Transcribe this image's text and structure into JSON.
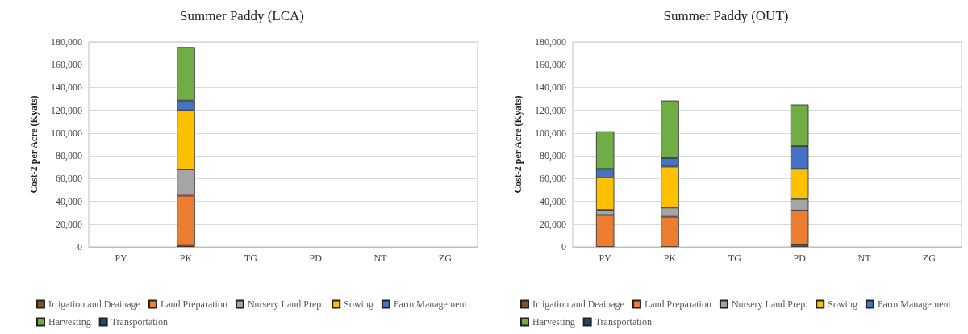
{
  "chart_data": [
    {
      "type": "bar",
      "title": "Summer Paddy (LCA)",
      "ylabel": "Cost-2 per Acre (Kyats)",
      "categories": [
        "PY",
        "PK",
        "TG",
        "PD",
        "NT",
        "ZG"
      ],
      "stacked": true,
      "ylim": [
        0,
        180000
      ],
      "yticks": [
        0,
        {
          "value": 20000,
          "label": "20,000"
        },
        {
          "value": 40000,
          "label": "40,000"
        },
        {
          "value": 60000,
          "label": "60,000"
        },
        {
          "value": 80000,
          "label": "80,000"
        },
        {
          "value": 100000,
          "label": "100,000"
        },
        {
          "value": 120000,
          "label": "120,000"
        },
        {
          "value": 140000,
          "label": "140,000"
        },
        {
          "value": 160000,
          "label": "160,000"
        },
        {
          "value": 180000,
          "label": "180,000"
        }
      ],
      "grid": "y",
      "legend": "bottom",
      "series": [
        {
          "name": "Irrigation and Deainage",
          "color": "#7f4f2a",
          "values": [
            null,
            1000,
            null,
            null,
            null,
            null
          ]
        },
        {
          "name": "Land Preparation",
          "color": "#ed7d31",
          "values": [
            null,
            44000,
            null,
            null,
            null,
            null
          ]
        },
        {
          "name": "Nursery Land Prep.",
          "color": "#a5a5a5",
          "values": [
            null,
            23000,
            null,
            null,
            null,
            null
          ]
        },
        {
          "name": "Sowing",
          "color": "#ffc000",
          "values": [
            null,
            52000,
            null,
            null,
            null,
            null
          ]
        },
        {
          "name": "Farm Management",
          "color": "#4472c4",
          "values": [
            null,
            8500,
            null,
            null,
            null,
            null
          ]
        },
        {
          "name": "Harvesting",
          "color": "#70ad47",
          "values": [
            null,
            47000,
            null,
            null,
            null,
            null
          ]
        },
        {
          "name": "Transportation",
          "color": "#264478",
          "values": [
            null,
            null,
            null,
            null,
            null,
            null
          ]
        }
      ]
    },
    {
      "type": "bar",
      "title": "Summer Paddy (OUT)",
      "ylabel": "Cost-2 per Acre (Kyats)",
      "categories": [
        "PY",
        "PK",
        "TG",
        "PD",
        "NT",
        "ZG"
      ],
      "stacked": true,
      "ylim": [
        0,
        180000
      ],
      "yticks": [
        0,
        {
          "value": 20000,
          "label": "20,000"
        },
        {
          "value": 40000,
          "label": "40,000"
        },
        {
          "value": 60000,
          "label": "60,000"
        },
        {
          "value": 80000,
          "label": "80,000"
        },
        {
          "value": 100000,
          "label": "100,000"
        },
        {
          "value": 120000,
          "label": "120,000"
        },
        {
          "value": 140000,
          "label": "140,000"
        },
        {
          "value": 160000,
          "label": "160,000"
        },
        {
          "value": 180000,
          "label": "180,000"
        }
      ],
      "grid": "y",
      "legend": "bottom",
      "series": [
        {
          "name": "Irrigation and Deainage",
          "color": "#7f4f2a",
          "values": [
            null,
            null,
            null,
            2000,
            null,
            null
          ]
        },
        {
          "name": "Land Preparation",
          "color": "#ed7d31",
          "values": [
            28000,
            26500,
            null,
            30000,
            null,
            null
          ]
        },
        {
          "name": "Nursery Land Prep.",
          "color": "#a5a5a5",
          "values": [
            4500,
            8000,
            null,
            10000,
            null,
            null
          ]
        },
        {
          "name": "Sowing",
          "color": "#ffc000",
          "values": [
            28500,
            36000,
            null,
            26500,
            null,
            null
          ]
        },
        {
          "name": "Farm Management",
          "color": "#4472c4",
          "values": [
            7500,
            7500,
            null,
            20000,
            null,
            null
          ]
        },
        {
          "name": "Harvesting",
          "color": "#70ad47",
          "values": [
            33000,
            50500,
            null,
            36500,
            null,
            null
          ]
        },
        {
          "name": "Transportation",
          "color": "#264478",
          "values": [
            null,
            null,
            null,
            null,
            null,
            null
          ]
        }
      ]
    }
  ]
}
